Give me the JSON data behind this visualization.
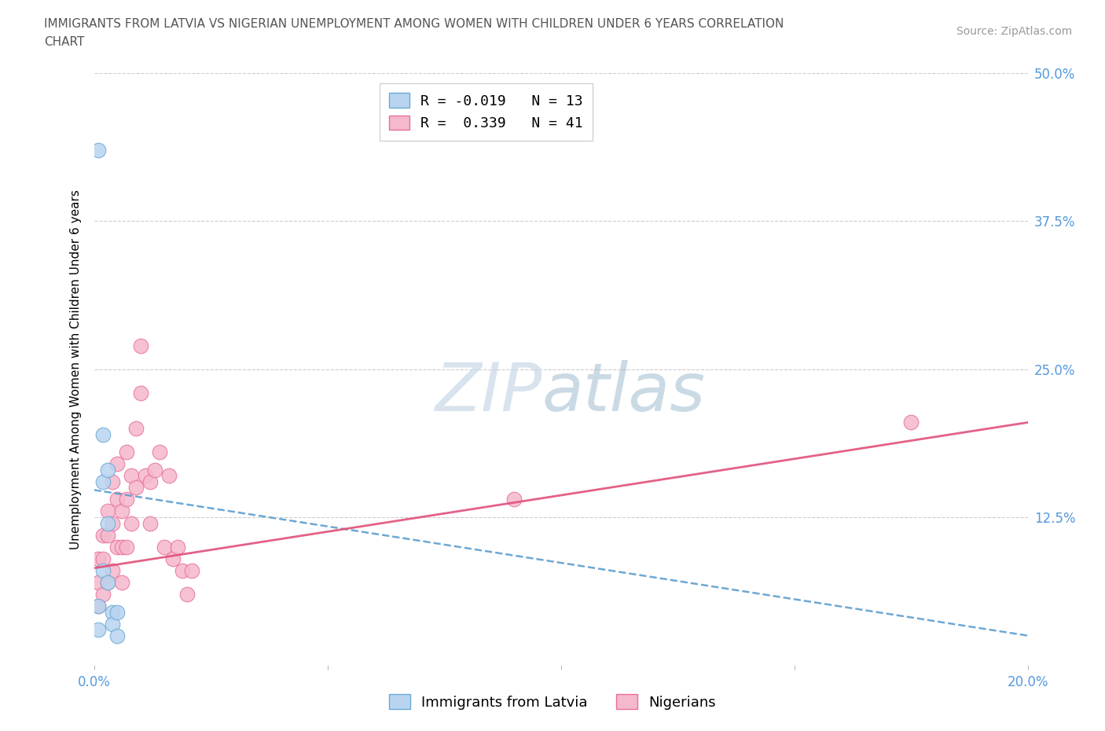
{
  "title_line1": "IMMIGRANTS FROM LATVIA VS NIGERIAN UNEMPLOYMENT AMONG WOMEN WITH CHILDREN UNDER 6 YEARS CORRELATION",
  "title_line2": "CHART",
  "source": "Source: ZipAtlas.com",
  "ylabel": "Unemployment Among Women with Children Under 6 years",
  "xlim": [
    0.0,
    0.2
  ],
  "ylim": [
    0.0,
    0.5
  ],
  "xticks": [
    0.0,
    0.05,
    0.1,
    0.15,
    0.2
  ],
  "xtick_labels": [
    "0.0%",
    "",
    "",
    "",
    "20.0%"
  ],
  "yticks": [
    0.0,
    0.125,
    0.25,
    0.375,
    0.5
  ],
  "ytick_labels_right": [
    "",
    "12.5%",
    "25.0%",
    "37.5%",
    "50.0%"
  ],
  "legend_line1": "R = -0.019   N = 13",
  "legend_line2": "R =  0.339   N = 41",
  "color_latvia_fill": "#b8d4f0",
  "color_latvia_edge": "#6aaad4",
  "color_nigerian_fill": "#f5b8cc",
  "color_nigerian_edge": "#e8709a",
  "color_latvia_trendline": "#5599cc",
  "color_nigerian_trendline": "#e0507a",
  "color_axis_labels": "#5599dd",
  "color_grid": "#cccccc",
  "watermark_ZIP": "ZIP",
  "watermark_atlas": "atlas",
  "latvia_x": [
    0.001,
    0.001,
    0.001,
    0.002,
    0.002,
    0.002,
    0.003,
    0.003,
    0.003,
    0.004,
    0.004,
    0.005,
    0.005
  ],
  "latvia_y": [
    0.435,
    0.03,
    0.05,
    0.195,
    0.155,
    0.08,
    0.165,
    0.12,
    0.07,
    0.045,
    0.035,
    0.025,
    0.045
  ],
  "nigerian_x": [
    0.001,
    0.001,
    0.001,
    0.002,
    0.002,
    0.002,
    0.003,
    0.003,
    0.003,
    0.004,
    0.004,
    0.004,
    0.005,
    0.005,
    0.005,
    0.006,
    0.006,
    0.006,
    0.007,
    0.007,
    0.007,
    0.008,
    0.008,
    0.009,
    0.009,
    0.01,
    0.01,
    0.011,
    0.012,
    0.012,
    0.013,
    0.014,
    0.015,
    0.016,
    0.017,
    0.018,
    0.019,
    0.02,
    0.021,
    0.09,
    0.175
  ],
  "nigerian_y": [
    0.09,
    0.07,
    0.05,
    0.11,
    0.09,
    0.06,
    0.13,
    0.11,
    0.07,
    0.155,
    0.12,
    0.08,
    0.17,
    0.14,
    0.1,
    0.13,
    0.1,
    0.07,
    0.18,
    0.14,
    0.1,
    0.16,
    0.12,
    0.2,
    0.15,
    0.27,
    0.23,
    0.16,
    0.155,
    0.12,
    0.165,
    0.18,
    0.1,
    0.16,
    0.09,
    0.1,
    0.08,
    0.06,
    0.08,
    0.14,
    0.205
  ],
  "latvia_trend_x0": 0.0,
  "latvia_trend_y0": 0.148,
  "latvia_trend_x1": 0.2,
  "latvia_trend_y1": 0.025,
  "nigerian_trend_x0": 0.0,
  "nigerian_trend_y0": 0.082,
  "nigerian_trend_x1": 0.2,
  "nigerian_trend_y1": 0.205
}
